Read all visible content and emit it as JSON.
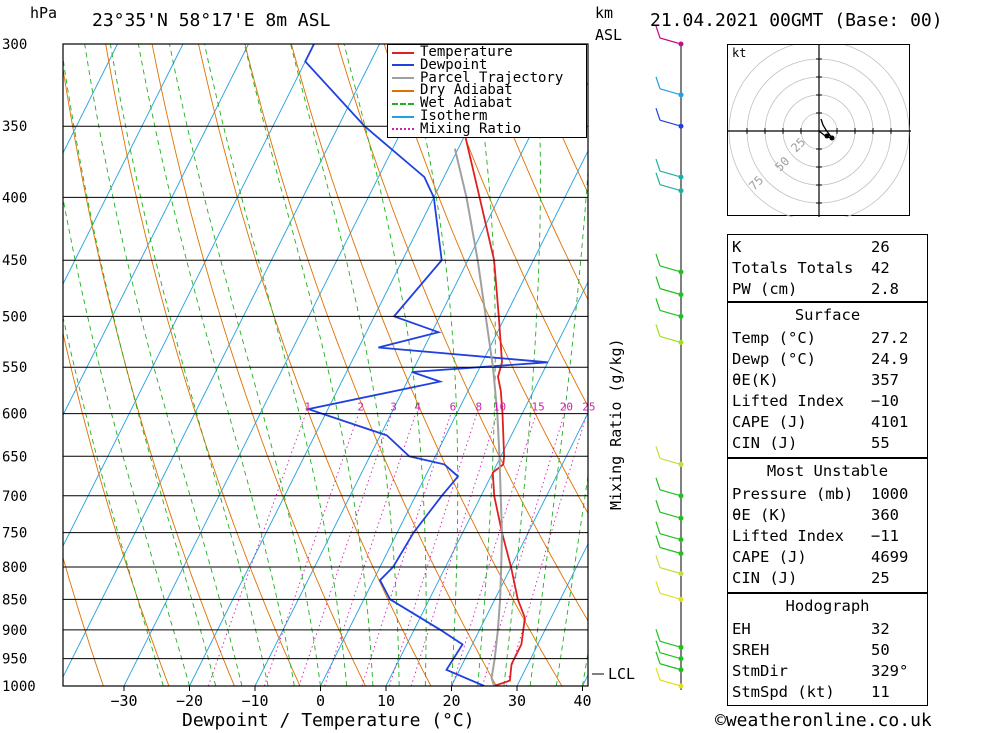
{
  "header": {
    "units_left": "hPa",
    "location": "23°35'N 58°17'E 8m ASL",
    "units_km": "km",
    "units_asl": "ASL",
    "datetime": "21.04.2021 00GMT (Base: 00)"
  },
  "footer": {
    "x_axis_label": "Dewpoint / Temperature (°C)",
    "copyright": "©weatheronline.co.uk",
    "mixing_ratio_label": "Mixing Ratio (g/kg)",
    "lcl_label": "LCL"
  },
  "legend": [
    {
      "label": "Temperature",
      "color": "#e02020",
      "style": "solid"
    },
    {
      "label": "Dewpoint",
      "color": "#2040e0",
      "style": "solid"
    },
    {
      "label": "Parcel Trajectory",
      "color": "#a0a0a0",
      "style": "solid"
    },
    {
      "label": "Dry Adiabat",
      "color": "#e07000",
      "style": "solid"
    },
    {
      "label": "Wet Adiabat",
      "color": "#20b020",
      "style": "dashed"
    },
    {
      "label": "Isotherm",
      "color": "#20a0e0",
      "style": "solid"
    },
    {
      "label": "Mixing Ratio",
      "color": "#d020b0",
      "style": "dotted"
    }
  ],
  "chart_data": {
    "type": "line",
    "title": "23°35'N 58°17'E 8m ASL",
    "xlabel": "Dewpoint / Temperature (°C)",
    "ylabel": "hPa",
    "x_ticks": [
      -30,
      -20,
      -10,
      0,
      10,
      20,
      30,
      40
    ],
    "pressure_levels": [
      300,
      350,
      400,
      450,
      500,
      550,
      600,
      650,
      700,
      750,
      800,
      850,
      900,
      950,
      1000
    ],
    "mixing_ratio_labels": [
      1,
      2,
      3,
      4,
      6,
      8,
      10,
      15,
      20,
      25
    ],
    "series": [
      {
        "name": "Temperature",
        "color": "#e02020",
        "points": [
          {
            "p": 1000,
            "t": 26.5
          },
          {
            "p": 990,
            "t": 28.5
          },
          {
            "p": 960,
            "t": 27.5
          },
          {
            "p": 925,
            "t": 27.5
          },
          {
            "p": 880,
            "t": 26.0
          },
          {
            "p": 850,
            "t": 23.5
          },
          {
            "p": 800,
            "t": 20.0
          },
          {
            "p": 750,
            "t": 16.0
          },
          {
            "p": 700,
            "t": 12.0
          },
          {
            "p": 670,
            "t": 10.0
          },
          {
            "p": 660,
            "t": 11.0
          },
          {
            "p": 650,
            "t": 10.5
          },
          {
            "p": 600,
            "t": 7.0
          },
          {
            "p": 575,
            "t": 5.0
          },
          {
            "p": 560,
            "t": 3.5
          },
          {
            "p": 545,
            "t": 3.0
          },
          {
            "p": 500,
            "t": -1.0
          },
          {
            "p": 450,
            "t": -6.0
          },
          {
            "p": 400,
            "t": -13.0
          },
          {
            "p": 350,
            "t": -21.0
          },
          {
            "p": 320,
            "t": -26.0
          },
          {
            "p": 306,
            "t": -28.0
          },
          {
            "p": 300,
            "t": -29.0
          }
        ]
      },
      {
        "name": "Dewpoint",
        "color": "#2040e0",
        "points": [
          {
            "p": 1000,
            "t": 25.0
          },
          {
            "p": 970,
            "t": 18.0
          },
          {
            "p": 925,
            "t": 18.5
          },
          {
            "p": 900,
            "t": 14.0
          },
          {
            "p": 850,
            "t": 4.0
          },
          {
            "p": 820,
            "t": 1.0
          },
          {
            "p": 800,
            "t": 2.0
          },
          {
            "p": 750,
            "t": 2.5
          },
          {
            "p": 700,
            "t": 4.0
          },
          {
            "p": 675,
            "t": 5.0
          },
          {
            "p": 660,
            "t": 2.0
          },
          {
            "p": 650,
            "t": -4.0
          },
          {
            "p": 625,
            "t": -9.0
          },
          {
            "p": 595,
            "t": -23.0
          },
          {
            "p": 565,
            "t": -5.0
          },
          {
            "p": 555,
            "t": -10.0
          },
          {
            "p": 545,
            "t": 10.0
          },
          {
            "p": 530,
            "t": -17.0
          },
          {
            "p": 515,
            "t": -9.0
          },
          {
            "p": 500,
            "t": -17.0
          },
          {
            "p": 450,
            "t": -14.0
          },
          {
            "p": 400,
            "t": -20.0
          },
          {
            "p": 385,
            "t": -23.0
          },
          {
            "p": 350,
            "t": -36.0
          },
          {
            "p": 310,
            "t": -50.0
          },
          {
            "p": 300,
            "t": -50.0
          }
        ]
      },
      {
        "name": "Parcel Trajectory",
        "color": "#a0a0a0",
        "points": [
          {
            "p": 1000,
            "t": 26.5
          },
          {
            "p": 985,
            "t": 25.5
          },
          {
            "p": 950,
            "t": 24.5
          },
          {
            "p": 900,
            "t": 22.8
          },
          {
            "p": 850,
            "t": 20.8
          },
          {
            "p": 800,
            "t": 18.5
          },
          {
            "p": 750,
            "t": 16.0
          },
          {
            "p": 700,
            "t": 13.0
          },
          {
            "p": 650,
            "t": 9.8
          },
          {
            "p": 600,
            "t": 6.2
          },
          {
            "p": 550,
            "t": 2.0
          },
          {
            "p": 500,
            "t": -3.0
          },
          {
            "p": 450,
            "t": -8.5
          },
          {
            "p": 400,
            "t": -15.0
          },
          {
            "p": 365,
            "t": -20.5
          }
        ]
      }
    ]
  },
  "wind_km_labels": [],
  "hodograph": {
    "unit_label": "kt",
    "ring_labels": [
      "25",
      "50",
      "75"
    ]
  },
  "indices": {
    "general": [
      {
        "label": "K",
        "value": "26"
      },
      {
        "label": "Totals Totals",
        "value": "42"
      },
      {
        "label": "PW (cm)",
        "value": "2.8"
      }
    ],
    "surface_title": "Surface",
    "surface": [
      {
        "label": "Temp (°C)",
        "value": "27.2"
      },
      {
        "label": "Dewp (°C)",
        "value": "24.9"
      },
      {
        "label": "θE(K)",
        "value": "357"
      },
      {
        "label": "Lifted Index",
        "value": "−10"
      },
      {
        "label": "CAPE (J)",
        "value": "4101"
      },
      {
        "label": "CIN (J)",
        "value": "55"
      }
    ],
    "unstable_title": "Most Unstable",
    "unstable": [
      {
        "label": "Pressure (mb)",
        "value": "1000"
      },
      {
        "label": "θE (K)",
        "value": "360"
      },
      {
        "label": "Lifted Index",
        "value": "−11"
      },
      {
        "label": "CAPE (J)",
        "value": "4699"
      },
      {
        "label": "CIN (J)",
        "value": "25"
      }
    ],
    "hodo_title": "Hodograph",
    "hodo": [
      {
        "label": "EH",
        "value": "32"
      },
      {
        "label": "SREH",
        "value": "50"
      },
      {
        "label": "StmDir",
        "value": "329°"
      },
      {
        "label": "StmSpd (kt)",
        "value": "11"
      }
    ]
  }
}
